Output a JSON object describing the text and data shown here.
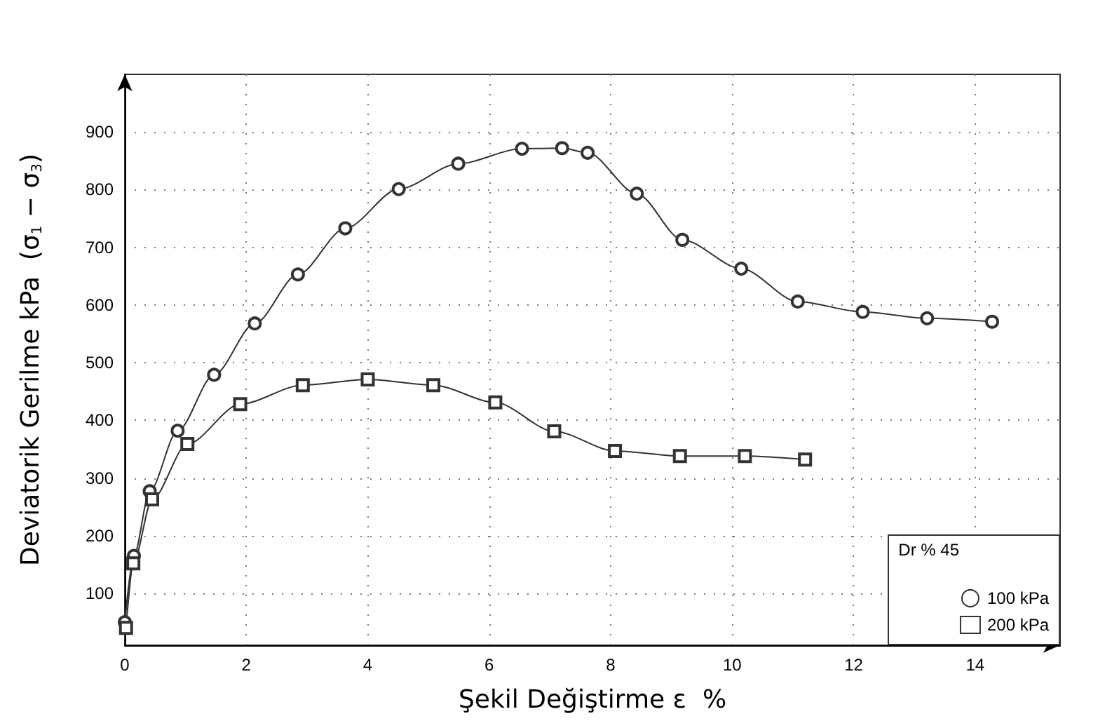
{
  "chart_data": {
    "type": "line",
    "xlabel": "Şekil Değiştirme ε  %",
    "ylabel": "Deviatorik Gerilme kPa  (σ$_{1}$ − σ$_{3}$)",
    "legend_title": "Dr % 45",
    "xlim": [
      0,
      15.4
    ],
    "ylim": [
      10,
      1000
    ],
    "xticks": [
      0,
      2,
      4,
      6,
      8,
      10,
      12,
      14
    ],
    "yticks": [
      100,
      200,
      300,
      400,
      500,
      600,
      700,
      800,
      900
    ],
    "grid": true,
    "legend": "bottom right",
    "line_style": "solid",
    "series": [
      {
        "name": "100 kPa",
        "color": "#333333",
        "marker": "circle",
        "x": [
          0,
          0.15,
          0.41,
          0.87,
          1.47,
          2.14,
          2.85,
          3.63,
          4.51,
          5.49,
          6.54,
          7.2,
          7.62,
          8.43,
          9.18,
          10.15,
          11.08,
          12.15,
          13.21,
          14.28
        ],
        "values": [
          50,
          165,
          277,
          382,
          479,
          568,
          653,
          733,
          801,
          845,
          871,
          872,
          864,
          793,
          713,
          663,
          606,
          588,
          577,
          571
        ]
      },
      {
        "name": "200 kPa",
        "color": "#333333",
        "marker": "square",
        "x": [
          0.02,
          0.14,
          0.45,
          1.03,
          1.9,
          2.93,
          4.0,
          5.08,
          6.1,
          7.07,
          8.07,
          9.14,
          10.21,
          11.2
        ],
        "values": [
          40,
          152,
          263,
          359,
          428,
          461,
          471,
          461,
          431,
          381,
          347,
          338,
          338,
          332
        ]
      }
    ]
  }
}
